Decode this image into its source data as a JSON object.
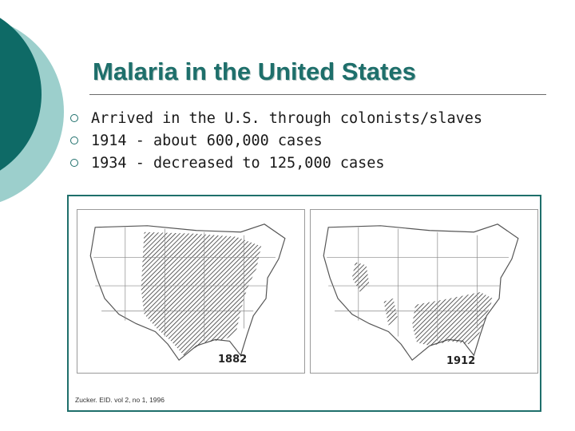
{
  "slide": {
    "title": "Malaria in the United States",
    "bullets": [
      "Arrived in the U.S. through colonists/slaves",
      "1914 - about 600,000 cases",
      "1934 - decreased to 125,000 cases"
    ]
  },
  "figure": {
    "maps": [
      {
        "year_label": "1882"
      },
      {
        "year_label": "1912"
      }
    ],
    "citation": "Zucker. EID. vol 2, no 1, 1996"
  },
  "colors": {
    "accent": "#1e6f6b",
    "accent_light": "#9ccfcc"
  }
}
